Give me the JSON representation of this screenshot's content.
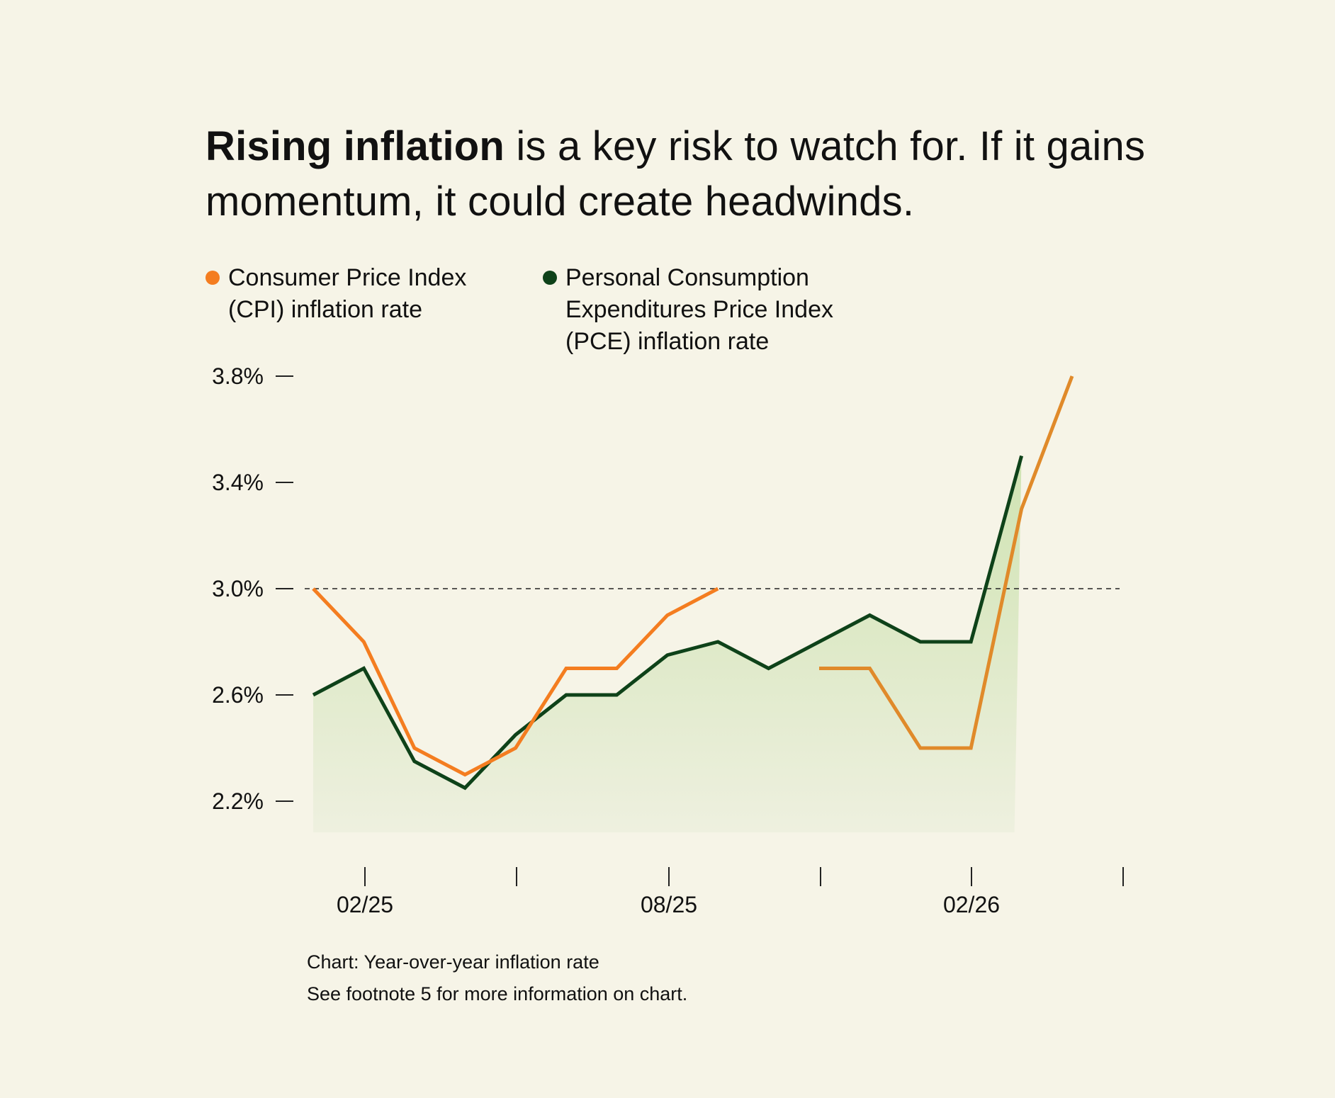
{
  "headline": {
    "bold": "Rising inflation",
    "rest": " is a key risk to watch for. If it gains momentum, it could create headwinds."
  },
  "legend": [
    {
      "label": "Consumer Price Index (CPI) inflation rate",
      "color": "#f47d20"
    },
    {
      "label": "Personal Consumption Expenditures Price Index (PCE) inflation rate",
      "color": "#0e4219"
    }
  ],
  "notes": {
    "line1": "Chart: Year-over-year inflation rate",
    "line2": "See footnote 5 for more information on chart."
  },
  "colors": {
    "background": "#f6f4e7",
    "cpi": "#f47d20",
    "cpi_secondary": "#e08a2a",
    "pce": "#0e4219",
    "area_top": "#cfe3b2",
    "area_bottom": "#eef0df"
  },
  "chart_data": {
    "type": "line",
    "x": [
      "01/25",
      "02/25",
      "03/25",
      "04/25",
      "05/25",
      "06/25",
      "07/25",
      "08/25",
      "09/25",
      "10/25",
      "11/25",
      "12/25",
      "01/26",
      "02/26",
      "03/26",
      "04/26"
    ],
    "x_tick_labels": [
      "",
      "02/25",
      "",
      "",
      "",
      "",
      "",
      "08/25",
      "",
      "",
      "",
      "",
      "",
      "02/26",
      "",
      ""
    ],
    "series": [
      {
        "name": "Consumer Price Index (CPI) inflation rate",
        "values": [
          3.0,
          2.8,
          2.4,
          2.3,
          2.4,
          2.7,
          2.7,
          2.9,
          3.0,
          null,
          2.7,
          2.7,
          2.4,
          2.4,
          3.3,
          3.8
        ]
      },
      {
        "name": "Personal Consumption Expenditures Price Index (PCE) inflation rate",
        "values": [
          2.6,
          2.7,
          2.35,
          2.25,
          2.45,
          2.6,
          2.6,
          2.75,
          2.8,
          2.7,
          2.8,
          2.9,
          2.8,
          2.8,
          3.5,
          null
        ]
      }
    ],
    "y_ticks": [
      "2.2%",
      "2.6%",
      "3.0%",
      "3.4%",
      "3.8%"
    ],
    "y_tick_values": [
      2.2,
      2.6,
      3.0,
      3.4,
      3.8
    ],
    "ylim": [
      2.1,
      3.8
    ],
    "reference_line": 3.0,
    "grid": false,
    "legend_position": "top-left"
  }
}
